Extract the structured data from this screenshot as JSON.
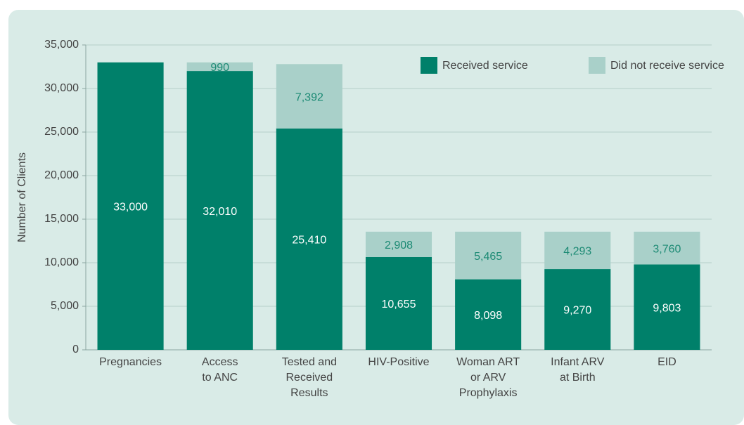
{
  "chart_data": {
    "type": "stacked_bar",
    "y_label": "Number of Clients",
    "categories": [
      [
        "Pregnancies"
      ],
      [
        "Access",
        "to ANC"
      ],
      [
        "Tested and",
        "Received",
        "Results"
      ],
      [
        "HIV-Positive"
      ],
      [
        "Woman ART",
        "or ARV",
        "Prophylaxis"
      ],
      [
        "Infant ARV",
        "at Birth"
      ],
      [
        "EID"
      ]
    ],
    "series": [
      {
        "name": "Received service",
        "color": "#00806a",
        "label_color": "#ffffff",
        "values": [
          33000,
          32010,
          25410,
          10655,
          8098,
          9270,
          9803
        ],
        "value_labels": [
          "33,000",
          "32,010",
          "25,410",
          "10,655",
          "8,098",
          "9,270",
          "9,803"
        ]
      },
      {
        "name": "Did not receive service",
        "color": "#a9d0c9",
        "label_color": "#1c8a74",
        "values": [
          null,
          990,
          7392,
          2908,
          5465,
          4293,
          3760
        ],
        "value_labels": [
          null,
          "990",
          "7,392",
          "2,908",
          "5,465",
          "4,293",
          "3,760"
        ]
      }
    ],
    "ylim": [
      0,
      35000
    ],
    "yticks": [
      0,
      {
        "value": 5000,
        "label": "5,000"
      },
      {
        "value": 10000,
        "label": "10,000"
      },
      {
        "value": 15000,
        "label": "15,000"
      },
      {
        "value": 20000,
        "label": "20,000"
      },
      {
        "value": 25000,
        "label": "25,000"
      },
      {
        "value": 30000,
        "label": "30,000"
      },
      {
        "value": 35000,
        "label": "35,000"
      }
    ],
    "grid": true,
    "legend": "upper right"
  }
}
